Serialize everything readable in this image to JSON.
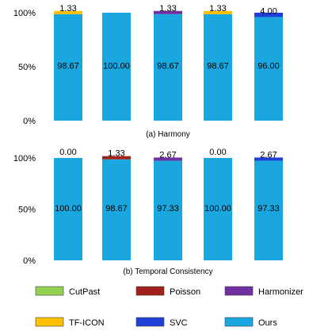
{
  "colors": {
    "CutPast": "#92d050",
    "Poisson": "#a0201a",
    "Harmonizer": "#7030a0",
    "TF-ICON": "#ffc000",
    "SVC": "#1f3fd6",
    "Ours": "#1aa7e0"
  },
  "legend": [
    {
      "name": "CutPast",
      "color": "#92d050"
    },
    {
      "name": "Poisson",
      "color": "#a0201a"
    },
    {
      "name": "Harmonizer",
      "color": "#7030a0"
    },
    {
      "name": "TF-ICON",
      "color": "#ffc000"
    },
    {
      "name": "SVC",
      "color": "#1f3fd6"
    },
    {
      "name": "Ours",
      "color": "#1aa7e0"
    }
  ],
  "chart_data": [
    {
      "type": "bar",
      "stacked": true,
      "caption": "(a) Harmony",
      "yticks": [
        "0%",
        "50%",
        "100%"
      ],
      "ylim": [
        0,
        100
      ],
      "bars": [
        {
          "segments": [
            {
              "series": "Ours",
              "value": 98.67,
              "label": "98.67"
            },
            {
              "series": "TF-ICON",
              "value": 1.33,
              "label": "1.33"
            }
          ]
        },
        {
          "segments": [
            {
              "series": "Ours",
              "value": 100.0,
              "label": "100.00"
            }
          ]
        },
        {
          "segments": [
            {
              "series": "Ours",
              "value": 98.67,
              "label": "98.67"
            },
            {
              "series": "Harmonizer",
              "value": 1.33,
              "label": "1.33"
            }
          ]
        },
        {
          "segments": [
            {
              "series": "Ours",
              "value": 98.67,
              "label": "98.67"
            },
            {
              "series": "TF-ICON",
              "value": 1.33,
              "label": "1.33"
            }
          ]
        },
        {
          "segments": [
            {
              "series": "Ours",
              "value": 96.0,
              "label": "96.00"
            },
            {
              "series": "SVC",
              "value": 4.0,
              "label": "4.00"
            }
          ]
        }
      ]
    },
    {
      "type": "bar",
      "stacked": true,
      "caption": "(b) Temporal Consistency",
      "yticks": [
        "0%",
        "50%",
        "100%"
      ],
      "ylim": [
        0,
        100
      ],
      "bars": [
        {
          "segments": [
            {
              "series": "Ours",
              "value": 100.0,
              "label": "100.00"
            },
            {
              "series": "SVC",
              "value": 0.0,
              "label": "0.00"
            }
          ]
        },
        {
          "segments": [
            {
              "series": "Ours",
              "value": 98.67,
              "label": "98.67"
            },
            {
              "series": "Poisson",
              "value": 1.33,
              "label": "1.33"
            }
          ]
        },
        {
          "segments": [
            {
              "series": "Ours",
              "value": 97.33,
              "label": "97.33"
            },
            {
              "series": "Harmonizer",
              "value": 2.67,
              "label": "2.67"
            }
          ]
        },
        {
          "segments": [
            {
              "series": "Ours",
              "value": 100.0,
              "label": "100.00"
            },
            {
              "series": "SVC",
              "value": 0.0,
              "label": "0.00"
            }
          ]
        },
        {
          "segments": [
            {
              "series": "Ours",
              "value": 97.33,
              "label": "97.33"
            },
            {
              "series": "SVC",
              "value": 2.67,
              "label": "2.67"
            }
          ]
        }
      ]
    }
  ]
}
